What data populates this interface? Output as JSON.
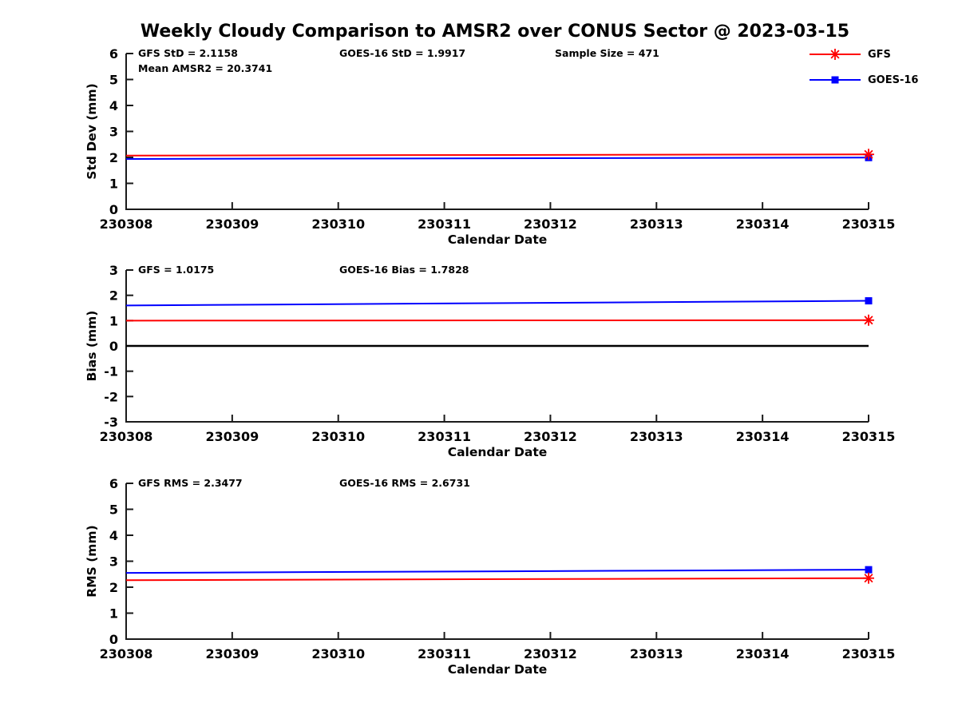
{
  "title": "Weekly Cloudy Comparison to AMSR2 over CONUS Sector @ 2023-03-15",
  "colors": {
    "gfs": "#ff0000",
    "goes16": "#0000ff",
    "zero_line": "#000000",
    "axis": "#1a1a1a",
    "text": "#000000",
    "background": "#ffffff"
  },
  "legend": {
    "position": "top-right",
    "items": [
      {
        "label": "GFS",
        "color": "#ff0000",
        "marker": "asterisk"
      },
      {
        "label": "GOES-16",
        "color": "#0000ff",
        "marker": "square"
      }
    ]
  },
  "chart_data": [
    {
      "type": "line",
      "panel": "std-dev",
      "ylabel": "Std Dev (mm)",
      "xlabel": "Calendar Date",
      "ylim": [
        0,
        6
      ],
      "yticks": [
        0,
        1,
        2,
        3,
        4,
        5,
        6
      ],
      "xlim": [
        230308,
        230315
      ],
      "xticks": [
        "230308",
        "230309",
        "230310",
        "230311",
        "230312",
        "230313",
        "230314",
        "230315"
      ],
      "grid": false,
      "annotations": [
        {
          "text": "GFS StD = 2.1158",
          "col": 0,
          "row": 0
        },
        {
          "text": "Mean AMSR2 = 20.3741",
          "col": 0,
          "row": 1
        },
        {
          "text": "GOES-16 StD = 1.9917",
          "col": 1,
          "row": 0
        },
        {
          "text": "Sample Size = 471",
          "col": 2,
          "row": 0
        }
      ],
      "series": [
        {
          "name": "GOES-16",
          "color": "#0000ff",
          "marker": "square",
          "marker_at": "end",
          "x": [
            230308,
            230315
          ],
          "y": [
            1.94,
            1.9917
          ]
        },
        {
          "name": "GFS",
          "color": "#ff0000",
          "marker": "asterisk",
          "marker_at": "end",
          "x": [
            230308,
            230315
          ],
          "y": [
            2.07,
            2.1158
          ]
        }
      ]
    },
    {
      "type": "line",
      "panel": "bias",
      "ylabel": "Bias (mm)",
      "xlabel": "Calendar Date",
      "ylim": [
        -3,
        3
      ],
      "yticks": [
        -3,
        -2,
        -1,
        0,
        1,
        2,
        3
      ],
      "xlim": [
        230308,
        230315
      ],
      "xticks": [
        "230308",
        "230309",
        "230310",
        "230311",
        "230312",
        "230313",
        "230314",
        "230315"
      ],
      "grid": false,
      "annotations": [
        {
          "text": "GFS = 1.0175",
          "col": 0,
          "row": 0
        },
        {
          "text": "GOES-16 Bias  = 1.7828",
          "col": 1,
          "row": 0
        }
      ],
      "series": [
        {
          "name": "zero-reference",
          "color": "#000000",
          "marker": "none",
          "x": [
            230308,
            230315
          ],
          "y": [
            0,
            0
          ]
        },
        {
          "name": "GOES-16",
          "color": "#0000ff",
          "marker": "square",
          "marker_at": "end",
          "x": [
            230308,
            230315
          ],
          "y": [
            1.6,
            1.7828
          ]
        },
        {
          "name": "GFS",
          "color": "#ff0000",
          "marker": "asterisk",
          "marker_at": "end",
          "x": [
            230308,
            230315
          ],
          "y": [
            1.0,
            1.0175
          ]
        }
      ]
    },
    {
      "type": "line",
      "panel": "rms",
      "ylabel": "RMS (mm)",
      "xlabel": "Calendar Date",
      "ylim": [
        0,
        6
      ],
      "yticks": [
        0,
        1,
        2,
        3,
        4,
        5,
        6
      ],
      "xlim": [
        230308,
        230315
      ],
      "xticks": [
        "230308",
        "230309",
        "230310",
        "230311",
        "230312",
        "230313",
        "230314",
        "230315"
      ],
      "grid": false,
      "annotations": [
        {
          "text": "GFS RMS = 2.3477",
          "col": 0,
          "row": 0
        },
        {
          "text": "GOES-16 RMS = 2.6731",
          "col": 1,
          "row": 0
        }
      ],
      "series": [
        {
          "name": "GOES-16",
          "color": "#0000ff",
          "marker": "square",
          "marker_at": "end",
          "x": [
            230308,
            230315
          ],
          "y": [
            2.55,
            2.6731
          ]
        },
        {
          "name": "GFS",
          "color": "#ff0000",
          "marker": "asterisk",
          "marker_at": "end",
          "x": [
            230308,
            230315
          ],
          "y": [
            2.27,
            2.3477
          ]
        }
      ]
    }
  ]
}
